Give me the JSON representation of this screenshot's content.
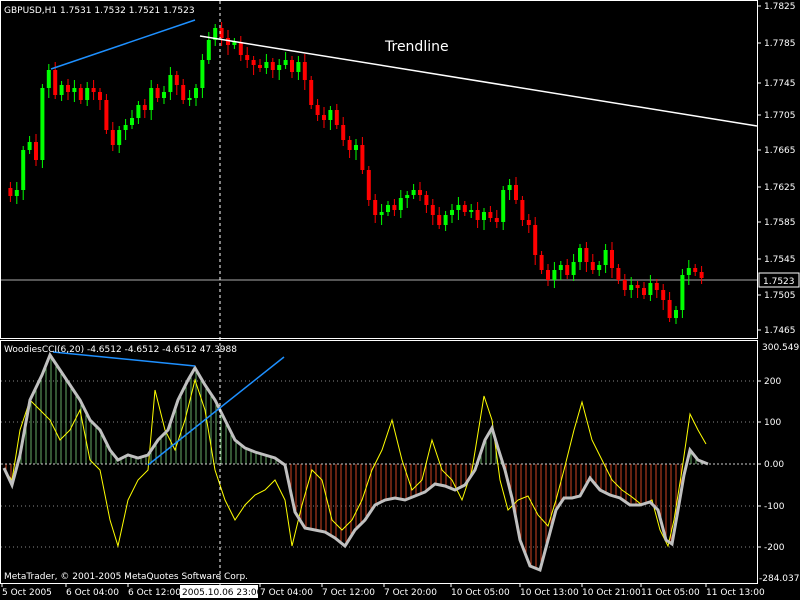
{
  "main_chart": {
    "header": "GBPUSD,H1  1.7531 1.7532 1.7521 1.7523",
    "price_labels": [
      "1.7825",
      "1.7785",
      "1.7745",
      "1.7705",
      "1.7665",
      "1.7625",
      "1.7585",
      "1.7545",
      "1.7505",
      "1.7465"
    ],
    "current_price": "1.7523",
    "trendline_label": "Trendline"
  },
  "indicator": {
    "header": "WoodiesCCI(6,20) -4.6512 -4.6512 -4.6512 47.3988",
    "max_label": "300.549",
    "min_label": "-284.037",
    "levels": [
      "200",
      "100",
      "0.00",
      "-100",
      "-200"
    ]
  },
  "copyright": "MetaTrader, © 2001-2005 MetaQuotes Software Corp.",
  "time_axis": {
    "labels": [
      "5 Oct 2005",
      "6 Oct 04:00",
      "6 Oct 12:00",
      "2005.10.06 23:00",
      "7 Oct 04:00",
      "7 Oct 12:00",
      "7 Oct 20:00",
      "10 Oct 05:00",
      "10 Oct 13:00",
      "10 Oct 21:00",
      "11 Oct 05:00",
      "11 Oct 13:00"
    ],
    "crosshair_label": "2005.10.06 23:00"
  },
  "colors": {
    "bull": "#00ff00",
    "bear": "#ff0000",
    "trend_white": "#ffffff",
    "trend_blue": "#1e90ff",
    "cci": "#c0c0c0",
    "turbo": "#ffff00",
    "hist_up": "#66aa66",
    "hist_dn": "#cc4422"
  }
}
